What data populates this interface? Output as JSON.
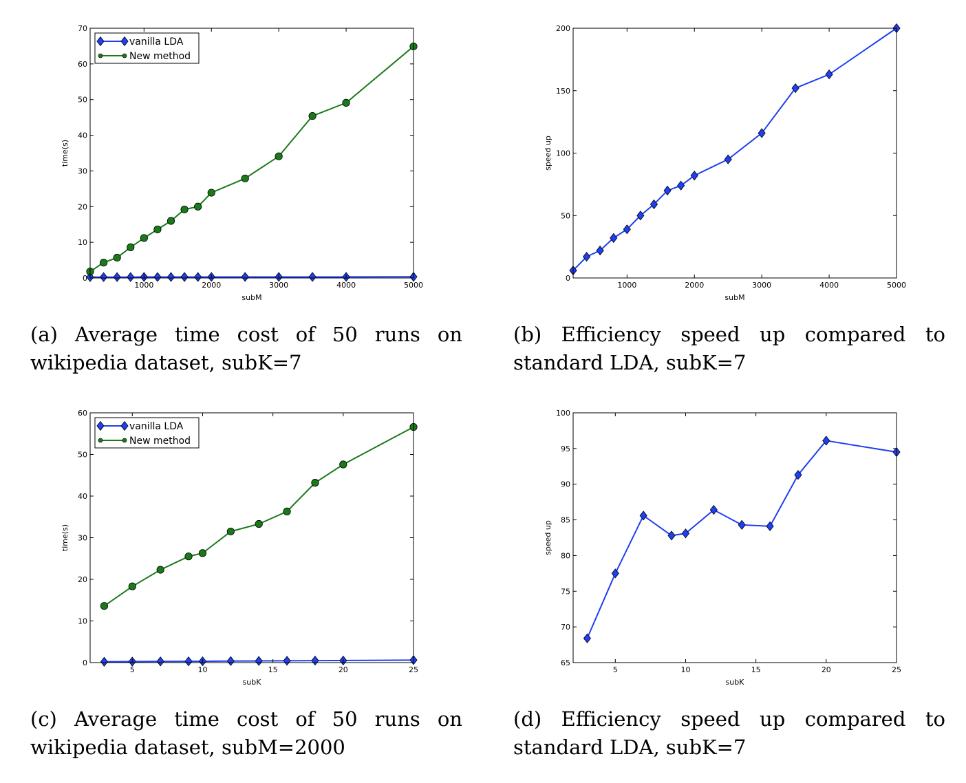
{
  "captions": {
    "a": "(a) Average time cost of 50 runs on wikipedia dataset, subK=7",
    "b": "(b) Efficiency speed up compared to standard LDA, subK=7",
    "c": "(c) Average time cost of 50 runs on wikipedia dataset, subM=2000",
    "d": "(d) Efficiency speed up compared to standard LDA, subK=7"
  },
  "chart_data": [
    {
      "id": "a",
      "type": "line",
      "xlabel": "subM",
      "ylabel": "time(s)",
      "xlim": [
        200,
        5000
      ],
      "ylim": [
        0,
        70
      ],
      "xticks": [
        1000,
        2000,
        3000,
        4000,
        5000
      ],
      "yticks": [
        0,
        10,
        20,
        30,
        40,
        50,
        60,
        70
      ],
      "legend": "top-left",
      "grid": false,
      "x": [
        200,
        400,
        600,
        800,
        1000,
        1200,
        1400,
        1600,
        1800,
        2000,
        2500,
        3000,
        3500,
        4000,
        5000
      ],
      "series": [
        {
          "name": "vanilla LDA",
          "color": "#1f3ff0",
          "marker": "diamond",
          "values": [
            0.25,
            0.25,
            0.25,
            0.25,
            0.28,
            0.27,
            0.27,
            0.28,
            0.27,
            0.29,
            0.29,
            0.29,
            0.3,
            0.3,
            0.33
          ]
        },
        {
          "name": "New method",
          "color": "#1a7a1a",
          "marker": "circle",
          "values": [
            1.8,
            4.3,
            5.7,
            8.6,
            11.2,
            13.6,
            16.0,
            19.2,
            20.0,
            23.9,
            27.9,
            34.1,
            45.4,
            49.1,
            64.9
          ]
        }
      ]
    },
    {
      "id": "b",
      "type": "line",
      "xlabel": "subM",
      "ylabel": "speed up",
      "xlim": [
        200,
        5000
      ],
      "ylim": [
        0,
        200
      ],
      "xticks": [
        1000,
        2000,
        3000,
        4000,
        5000
      ],
      "yticks": [
        0,
        50,
        100,
        150,
        200
      ],
      "grid": false,
      "x": [
        200,
        400,
        600,
        800,
        1000,
        1200,
        1400,
        1600,
        1800,
        2000,
        2500,
        3000,
        3500,
        4000,
        5000
      ],
      "series": [
        {
          "color": "#1f3ff0",
          "marker": "diamond",
          "values": [
            6,
            17,
            22,
            32,
            39,
            50,
            59,
            70,
            74,
            82,
            95,
            116,
            152,
            163,
            200
          ]
        }
      ]
    },
    {
      "id": "c",
      "type": "line",
      "xlabel": "subK",
      "ylabel": "time(s)",
      "xlim": [
        2,
        25
      ],
      "ylim": [
        0,
        60
      ],
      "xticks": [
        5,
        10,
        15,
        20,
        25
      ],
      "yticks": [
        0,
        10,
        20,
        30,
        40,
        50,
        60
      ],
      "legend": "top-left",
      "grid": false,
      "x": [
        3,
        5,
        7,
        9,
        10,
        12,
        14,
        16,
        18,
        20,
        25
      ],
      "series": [
        {
          "name": "vanilla LDA",
          "color": "#1f3ff0",
          "marker": "diamond",
          "values": [
            0.2,
            0.24,
            0.28,
            0.3,
            0.32,
            0.37,
            0.4,
            0.43,
            0.47,
            0.5,
            0.6
          ]
        },
        {
          "name": "New method",
          "color": "#1a7a1a",
          "marker": "circle",
          "values": [
            13.6,
            18.3,
            22.3,
            25.5,
            26.3,
            31.5,
            33.3,
            36.3,
            43.2,
            47.6,
            56.6
          ]
        }
      ]
    },
    {
      "id": "d",
      "type": "line",
      "xlabel": "subK",
      "ylabel": "speed up",
      "xlim": [
        2,
        25
      ],
      "ylim": [
        65,
        100
      ],
      "xticks": [
        5,
        10,
        15,
        20,
        25
      ],
      "yticks": [
        65,
        70,
        75,
        80,
        85,
        90,
        95,
        100
      ],
      "grid": false,
      "x": [
        3,
        5,
        7,
        9,
        10,
        12,
        14,
        16,
        18,
        20,
        25
      ],
      "series": [
        {
          "color": "#1f3ff0",
          "marker": "diamond",
          "values": [
            68.4,
            77.5,
            85.6,
            82.8,
            83.1,
            86.4,
            84.3,
            84.1,
            91.3,
            96.1,
            94.5
          ]
        }
      ]
    }
  ]
}
